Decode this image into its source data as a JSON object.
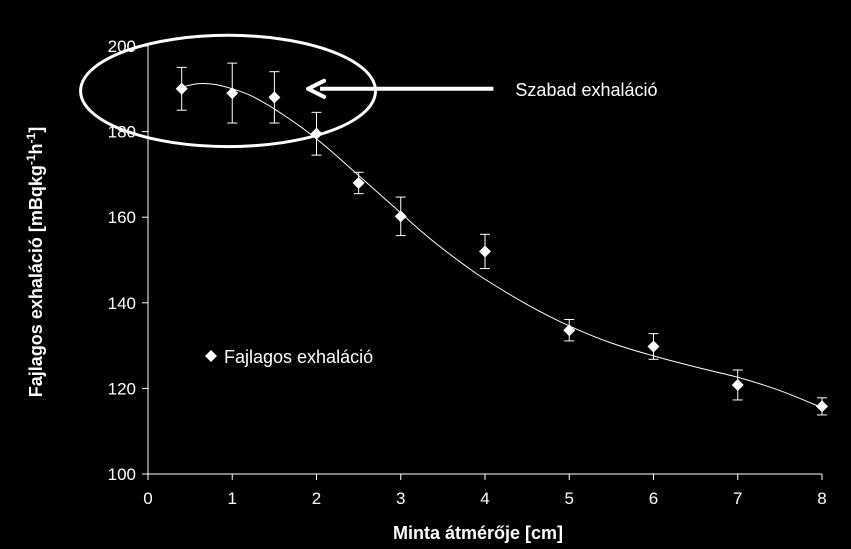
{
  "chart_data": {
    "type": "scatter",
    "xlabel": "Minta átmérője [cm]",
    "ylabel_parts": {
      "main": "Fajlagos exhaláció [mBqkg",
      "sup1": "-1",
      "mid": "h",
      "sup2": "-1",
      "end": "]"
    },
    "xlim": [
      0,
      8
    ],
    "ylim": [
      100,
      200
    ],
    "x_ticks": [
      0,
      1,
      2,
      3,
      4,
      5,
      6,
      7,
      8
    ],
    "y_ticks": [
      100,
      120,
      140,
      160,
      180,
      200
    ],
    "grid": false,
    "legend_position": "lower-left",
    "series": [
      {
        "name": "Fajlagos exhaláció",
        "marker": "diamond",
        "color": "#ffffff",
        "x": [
          0.4,
          1.0,
          1.5,
          2.0,
          2.5,
          3.0,
          4.0,
          5.0,
          6.0,
          7.0,
          8.0
        ],
        "y": [
          190,
          189,
          188,
          179.5,
          168,
          160.2,
          152,
          133.6,
          129.8,
          120.8,
          115.8
        ],
        "err": [
          5,
          7,
          6,
          5,
          2.5,
          4.5,
          4,
          2.5,
          3,
          3.5,
          2
        ]
      }
    ],
    "trendline": {
      "x": [
        0.4,
        0.6,
        0.8,
        1.0,
        1.2,
        1.4,
        1.6,
        1.8,
        2.0,
        2.2,
        2.4,
        2.6,
        2.8,
        3.0,
        3.25,
        3.5,
        3.75,
        4.0,
        4.5,
        5.0,
        5.5,
        6.0,
        6.5,
        7.0,
        7.5,
        8.0
      ],
      "y": [
        190.4,
        191.2,
        191.0,
        190.0,
        188.6,
        186.5,
        184.0,
        181.3,
        178.3,
        175.0,
        171.5,
        168.0,
        164.5,
        161.0,
        156.6,
        152.6,
        148.9,
        145.5,
        139.6,
        134.6,
        130.6,
        127.6,
        125.0,
        122.6,
        119.5,
        115.5
      ]
    },
    "annotation": {
      "text": "Szabad exhaláció",
      "ellipse_data": {
        "x_center": 0.95,
        "y_center": 189.5,
        "x_radius": 1.75,
        "y_radius": 13
      },
      "arrow_from": {
        "x": 4.1,
        "y": 190
      },
      "arrow_to": {
        "x": 1.9,
        "y": 190
      }
    }
  }
}
